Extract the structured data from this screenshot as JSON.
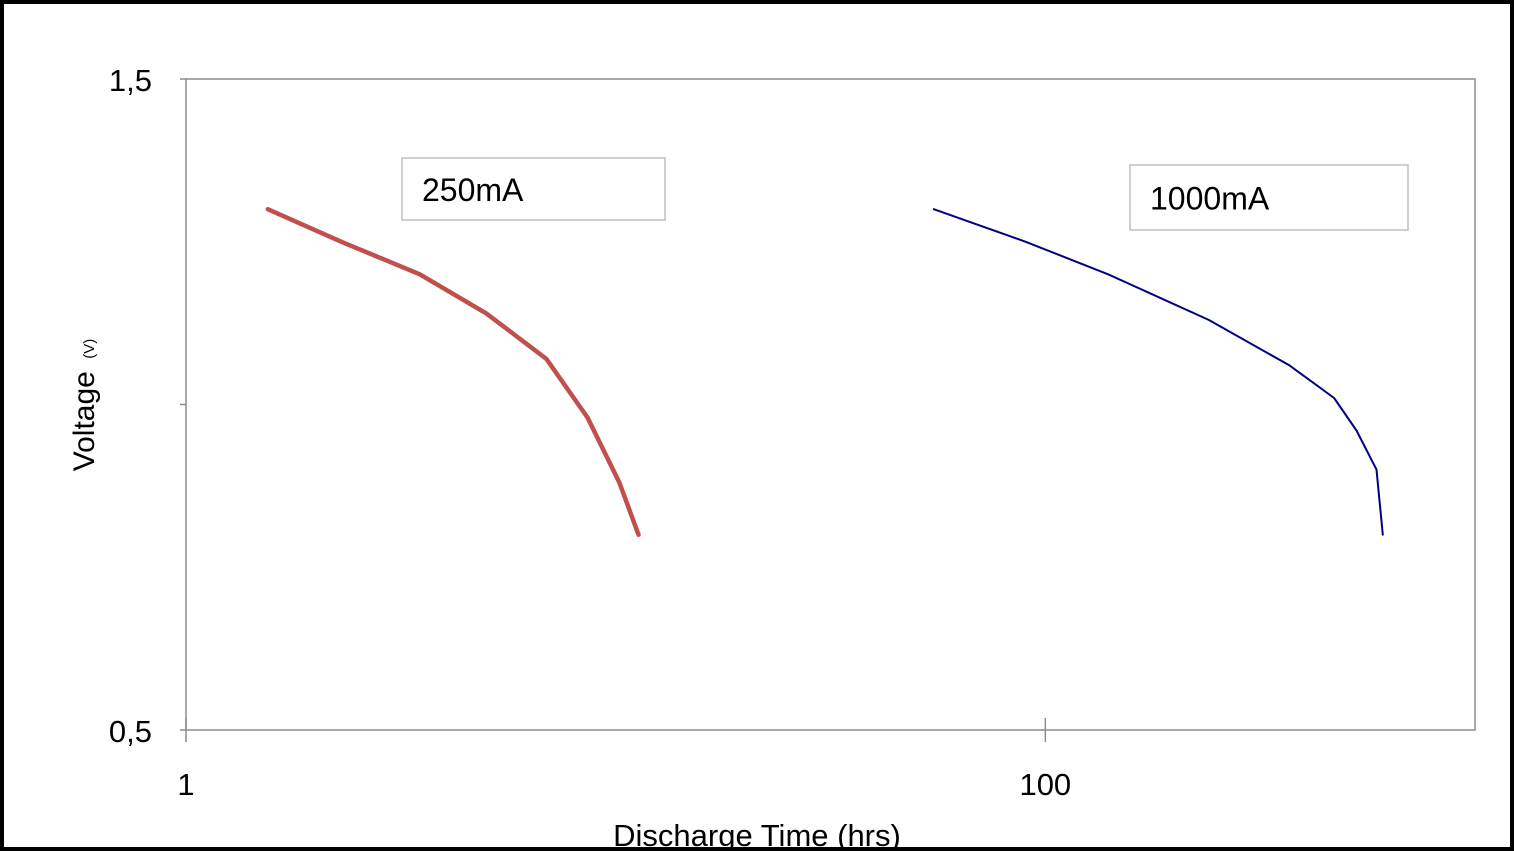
{
  "chart_data": {
    "type": "line",
    "xscale": "log",
    "xlim": [
      1,
      1000
    ],
    "ylim": [
      0.5,
      1.5
    ],
    "xticks": [
      {
        "value": 1,
        "label": "1"
      },
      {
        "value": 100,
        "label": "100"
      }
    ],
    "yticks": [
      {
        "value": 0.5,
        "label": "0,5"
      },
      {
        "value": 1.0,
        "label": ""
      },
      {
        "value": 1.5,
        "label": "1,5"
      }
    ],
    "xlabel": "Discharge Time (hrs)",
    "ylabel": "Voltage",
    "ylabel_unit": "(V)",
    "grid": false,
    "series": [
      {
        "name": "250mA",
        "color": "#c0504d",
        "points": [
          [
            1.55,
            1.3
          ],
          [
            2.3,
            1.25
          ],
          [
            3.5,
            1.2
          ],
          [
            5.0,
            1.14
          ],
          [
            6.9,
            1.07
          ],
          [
            8.6,
            0.98
          ],
          [
            10.2,
            0.88
          ],
          [
            11.3,
            0.8
          ]
        ]
      },
      {
        "name": "1000mA",
        "color": "#000080",
        "points": [
          [
            55,
            1.3
          ],
          [
            90,
            1.25
          ],
          [
            140,
            1.2
          ],
          [
            240,
            1.13
          ],
          [
            370,
            1.06
          ],
          [
            470,
            1.01
          ],
          [
            530,
            0.96
          ],
          [
            590,
            0.9
          ],
          [
            610,
            0.8
          ]
        ]
      }
    ],
    "annotations": [
      {
        "text": "250mA",
        "series": "250mA"
      },
      {
        "text": "1000mA",
        "series": "1000mA"
      }
    ]
  }
}
